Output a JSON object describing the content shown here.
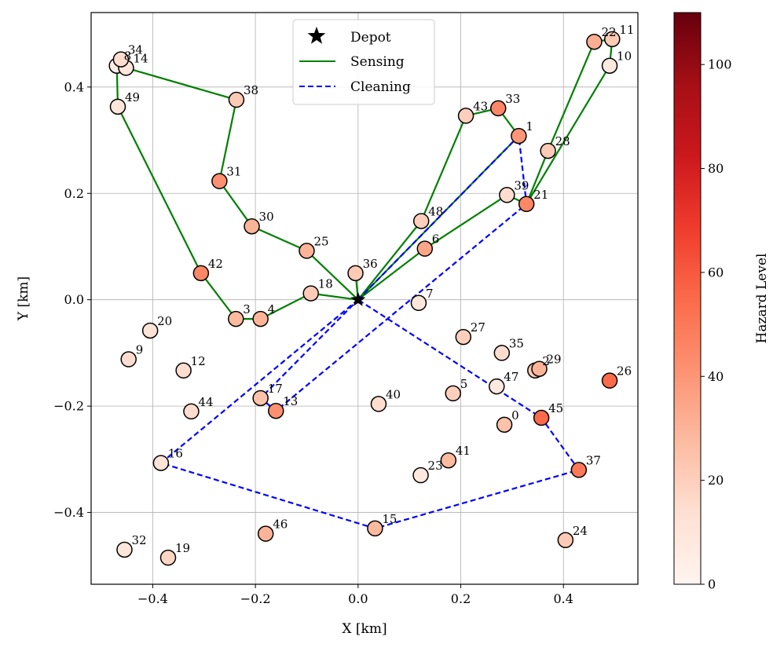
{
  "chart_data": {
    "type": "scatter",
    "title": "",
    "xlabel": "X [km]",
    "ylabel": "Y [km]",
    "xlim": [
      -0.52,
      0.545
    ],
    "ylim": [
      -0.535,
      0.54
    ],
    "xticks": [
      -0.4,
      -0.2,
      0.0,
      0.2,
      0.4
    ],
    "xtick_labels": [
      "−0.4",
      "−0.2",
      "0.0",
      "0.2",
      "0.4"
    ],
    "yticks": [
      -0.4,
      -0.2,
      0.0,
      0.2,
      0.4
    ],
    "ytick_labels": [
      "−0.4",
      "−0.2",
      "0.0",
      "0.2",
      "0.4"
    ],
    "grid": true,
    "legend_position": "top-center",
    "legend": [
      {
        "name": "Depot",
        "marker": "star"
      },
      {
        "name": "Sensing",
        "style": "solid",
        "color": "#008000"
      },
      {
        "name": "Cleaning",
        "style": "dashed",
        "color": "#0000ff"
      }
    ],
    "colorbar": {
      "label": "Hazard Level",
      "min": 0,
      "max": 110,
      "ticks": [
        0,
        20,
        40,
        60,
        80,
        100
      ],
      "tick_labels": [
        "0",
        "20",
        "40",
        "60",
        "80",
        "100"
      ],
      "colormap": "Reds"
    },
    "depot": {
      "x": 0.0,
      "y": 0.0
    },
    "nodes": [
      {
        "id": "0",
        "x": 0.285,
        "y": -0.235,
        "hazard": 25
      },
      {
        "id": "1",
        "x": 0.313,
        "y": 0.308,
        "hazard": 40
      },
      {
        "id": "2",
        "x": 0.345,
        "y": -0.133,
        "hazard": 22
      },
      {
        "id": "3",
        "x": -0.238,
        "y": -0.036,
        "hazard": 28
      },
      {
        "id": "4",
        "x": -0.19,
        "y": -0.036,
        "hazard": 30
      },
      {
        "id": "5",
        "x": 0.185,
        "y": -0.176,
        "hazard": 20
      },
      {
        "id": "6",
        "x": 0.13,
        "y": 0.096,
        "hazard": 35
      },
      {
        "id": "7",
        "x": 0.118,
        "y": -0.006,
        "hazard": 10
      },
      {
        "id": "8",
        "x": -0.47,
        "y": 0.44,
        "hazard": 5
      },
      {
        "id": "9",
        "x": -0.447,
        "y": -0.112,
        "hazard": 15
      },
      {
        "id": "10",
        "x": 0.49,
        "y": 0.44,
        "hazard": 8
      },
      {
        "id": "11",
        "x": 0.495,
        "y": 0.49,
        "hazard": 22
      },
      {
        "id": "12",
        "x": -0.34,
        "y": -0.133,
        "hazard": 15
      },
      {
        "id": "13",
        "x": -0.16,
        "y": -0.209,
        "hazard": 42
      },
      {
        "id": "14",
        "x": -0.452,
        "y": 0.436,
        "hazard": 10
      },
      {
        "id": "15",
        "x": 0.033,
        "y": -0.43,
        "hazard": 28
      },
      {
        "id": "16",
        "x": -0.384,
        "y": -0.307,
        "hazard": 12
      },
      {
        "id": "17",
        "x": -0.19,
        "y": -0.185,
        "hazard": 25
      },
      {
        "id": "18",
        "x": -0.092,
        "y": 0.012,
        "hazard": 22
      },
      {
        "id": "19",
        "x": -0.37,
        "y": -0.485,
        "hazard": 18
      },
      {
        "id": "20",
        "x": -0.405,
        "y": -0.058,
        "hazard": 12
      },
      {
        "id": "21",
        "x": 0.328,
        "y": 0.18,
        "hazard": 45
      },
      {
        "id": "22",
        "x": 0.46,
        "y": 0.485,
        "hazard": 32
      },
      {
        "id": "23",
        "x": 0.122,
        "y": -0.33,
        "hazard": 8
      },
      {
        "id": "24",
        "x": 0.404,
        "y": -0.452,
        "hazard": 22
      },
      {
        "id": "25",
        "x": -0.1,
        "y": 0.092,
        "hazard": 30
      },
      {
        "id": "26",
        "x": 0.49,
        "y": -0.152,
        "hazard": 55
      },
      {
        "id": "27",
        "x": 0.205,
        "y": -0.07,
        "hazard": 20
      },
      {
        "id": "28",
        "x": 0.37,
        "y": 0.28,
        "hazard": 22
      },
      {
        "id": "29",
        "x": 0.353,
        "y": -0.13,
        "hazard": 30
      },
      {
        "id": "30",
        "x": -0.207,
        "y": 0.138,
        "hazard": 30
      },
      {
        "id": "31",
        "x": -0.27,
        "y": 0.223,
        "hazard": 42
      },
      {
        "id": "32",
        "x": -0.455,
        "y": -0.47,
        "hazard": 10
      },
      {
        "id": "33",
        "x": 0.273,
        "y": 0.36,
        "hazard": 45
      },
      {
        "id": "34",
        "x": -0.462,
        "y": 0.452,
        "hazard": 15
      },
      {
        "id": "35",
        "x": 0.28,
        "y": -0.1,
        "hazard": 15
      },
      {
        "id": "36",
        "x": -0.005,
        "y": 0.05,
        "hazard": 22
      },
      {
        "id": "37",
        "x": 0.43,
        "y": -0.32,
        "hazard": 50
      },
      {
        "id": "38",
        "x": -0.237,
        "y": 0.376,
        "hazard": 22
      },
      {
        "id": "39",
        "x": 0.29,
        "y": 0.197,
        "hazard": 15
      },
      {
        "id": "40",
        "x": 0.04,
        "y": -0.196,
        "hazard": 15
      },
      {
        "id": "41",
        "x": 0.176,
        "y": -0.302,
        "hazard": 28
      },
      {
        "id": "42",
        "x": -0.306,
        "y": 0.05,
        "hazard": 45
      },
      {
        "id": "43",
        "x": 0.21,
        "y": 0.346,
        "hazard": 20
      },
      {
        "id": "44",
        "x": -0.325,
        "y": -0.21,
        "hazard": 15
      },
      {
        "id": "45",
        "x": 0.357,
        "y": -0.222,
        "hazard": 55
      },
      {
        "id": "46",
        "x": -0.18,
        "y": -0.44,
        "hazard": 30
      },
      {
        "id": "47",
        "x": 0.27,
        "y": -0.163,
        "hazard": 8
      },
      {
        "id": "48",
        "x": 0.123,
        "y": 0.148,
        "hazard": 20
      },
      {
        "id": "49",
        "x": -0.468,
        "y": 0.363,
        "hazard": 10
      }
    ],
    "routes": [
      {
        "name": "Sensing",
        "style": "solid",
        "color": "#008000",
        "path": [
          [
            0.0,
            0.0
          ],
          [
            -0.092,
            0.012
          ],
          [
            -0.19,
            -0.036
          ],
          [
            -0.238,
            -0.036
          ],
          [
            -0.306,
            0.05
          ],
          [
            -0.468,
            0.363
          ],
          [
            -0.47,
            0.44
          ],
          [
            -0.462,
            0.452
          ],
          [
            -0.452,
            0.436
          ],
          [
            -0.237,
            0.376
          ],
          [
            -0.27,
            0.223
          ],
          [
            -0.207,
            0.138
          ],
          [
            -0.1,
            0.092
          ],
          [
            0.0,
            0.0
          ],
          [
            0.123,
            0.148
          ],
          [
            0.21,
            0.346
          ],
          [
            0.273,
            0.36
          ],
          [
            0.313,
            0.308
          ],
          [
            0.0,
            0.0
          ]
        ]
      },
      {
        "name": "Sensing",
        "style": "solid",
        "color": "#008000",
        "path": [
          [
            0.0,
            0.0
          ],
          [
            -0.005,
            0.05
          ],
          [
            0.0,
            0.0
          ],
          [
            0.13,
            0.096
          ],
          [
            0.29,
            0.197
          ],
          [
            0.328,
            0.18
          ],
          [
            0.37,
            0.28
          ],
          [
            0.46,
            0.485
          ],
          [
            0.495,
            0.49
          ],
          [
            0.49,
            0.44
          ],
          [
            0.328,
            0.18
          ]
        ]
      },
      {
        "name": "Cleaning",
        "style": "dashed",
        "color": "#0000ff",
        "path": [
          [
            0.0,
            0.0
          ],
          [
            0.313,
            0.308
          ],
          [
            0.328,
            0.18
          ],
          [
            -0.16,
            -0.209
          ],
          [
            -0.19,
            -0.185
          ],
          [
            0.0,
            0.0
          ]
        ]
      },
      {
        "name": "Cleaning",
        "style": "dashed",
        "color": "#0000ff",
        "path": [
          [
            0.0,
            0.0
          ],
          [
            -0.384,
            -0.307
          ],
          [
            0.033,
            -0.43
          ],
          [
            0.43,
            -0.32
          ],
          [
            0.357,
            -0.222
          ],
          [
            0.0,
            0.0
          ]
        ]
      }
    ]
  }
}
